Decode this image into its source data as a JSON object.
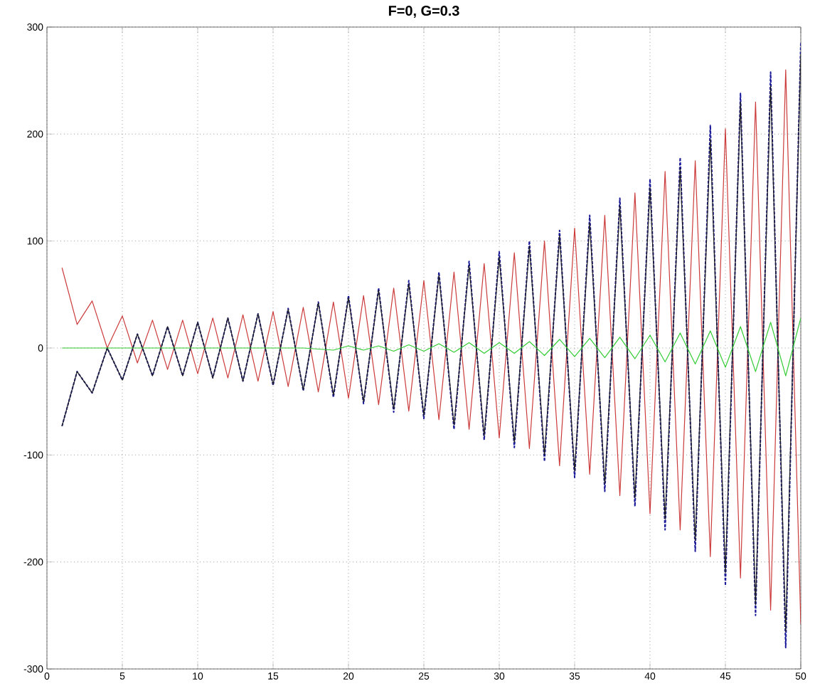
{
  "chart_data": {
    "type": "line",
    "title": "**F=0, G=0.3**",
    "x": [
      1,
      2,
      3,
      4,
      5,
      6,
      7,
      8,
      9,
      10,
      11,
      12,
      13,
      14,
      15,
      16,
      17,
      18,
      19,
      20,
      21,
      22,
      23,
      24,
      25,
      26,
      27,
      28,
      29,
      30,
      31,
      32,
      33,
      34,
      35,
      36,
      37,
      38,
      39,
      40,
      41,
      42,
      43,
      44,
      45,
      46,
      47,
      48,
      49,
      50
    ],
    "series": [
      {
        "color": "#cc3b3b",
        "line_style": "solid",
        "values": [
          75,
          22,
          44,
          0,
          30,
          -14,
          26,
          -20,
          26,
          -24,
          28,
          -28,
          31,
          -31,
          34,
          -36,
          38,
          -41,
          43,
          -47,
          49,
          -53,
          56,
          -59,
          63,
          -67,
          71,
          -76,
          79,
          -84,
          89,
          -94,
          100,
          -110,
          112,
          -118,
          124,
          -138,
          145,
          -155,
          165,
          -170,
          175,
          -195,
          205,
          -215,
          230,
          -245,
          260,
          -258
        ]
      },
      {
        "color": "#1a1a99",
        "line_style": "dashed",
        "values": [
          -73,
          -22,
          -42,
          0,
          -30,
          13,
          -26,
          20,
          -26,
          24,
          -28,
          28,
          -31,
          32,
          -35,
          37,
          -40,
          43,
          -46,
          49,
          -52,
          56,
          -60,
          63,
          -66,
          71,
          -76,
          81,
          -86,
          90,
          -93,
          100,
          -106,
          110,
          -121,
          124,
          -134,
          140,
          -148,
          158,
          -170,
          178,
          -190,
          208,
          -222,
          238,
          -250,
          258,
          -280,
          285
        ]
      },
      {
        "color": "#222222",
        "line_style": "solid",
        "values": [
          -73,
          -22,
          -42,
          0,
          -30,
          13,
          -26,
          20,
          -26,
          24,
          -28,
          28,
          -31,
          32,
          -34,
          36,
          -39,
          42,
          -44,
          47,
          -50,
          54,
          -57,
          60,
          -63,
          68,
          -72,
          77,
          -82,
          85,
          -88,
          95,
          -100,
          105,
          -115,
          117,
          -127,
          133,
          -140,
          150,
          -160,
          168,
          -180,
          195,
          -210,
          230,
          -240,
          245,
          -265,
          275
        ]
      },
      {
        "color": "#33cc33",
        "line_style": "solid",
        "values": [
          0,
          0,
          0,
          0,
          0,
          0,
          0,
          0,
          0,
          0,
          0,
          0,
          0,
          0,
          0,
          0,
          0,
          -1,
          -2,
          2,
          -2,
          2,
          -3,
          3,
          -3,
          4,
          -4,
          5,
          -5,
          5,
          -5,
          6,
          -7,
          8,
          -8,
          9,
          -9,
          10,
          -10,
          12,
          -13,
          14,
          -15,
          16,
          -18,
          20,
          -22,
          24,
          -26,
          28
        ]
      }
    ],
    "xlim": [
      0,
      50
    ],
    "xticks": [
      0,
      5,
      10,
      15,
      20,
      25,
      30,
      35,
      40,
      45,
      50
    ],
    "ylim": [
      -300,
      300
    ],
    "yticks": [
      -300,
      -200,
      -100,
      0,
      100,
      200,
      300
    ],
    "grid": true
  }
}
